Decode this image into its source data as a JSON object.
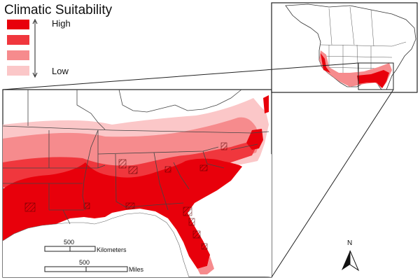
{
  "legend": {
    "title": "Climatic Suitability",
    "high_label": "High",
    "low_label": "Low",
    "classes": [
      {
        "level": "class-1-highest",
        "color": "#e8000b"
      },
      {
        "level": "class-2",
        "color": "#f0373d"
      },
      {
        "level": "class-3",
        "color": "#f68b8d"
      },
      {
        "level": "class-4-lowest",
        "color": "#fbc7c8"
      }
    ]
  },
  "scale_bars": {
    "kilometers": {
      "value": "500",
      "unit": "Kilometers"
    },
    "miles": {
      "value": "500",
      "unit": "Miles"
    }
  },
  "north_arrow": {
    "label": "N"
  },
  "colors": {
    "land": "#ffffff",
    "borders": "#444444",
    "outline": "#222222"
  }
}
